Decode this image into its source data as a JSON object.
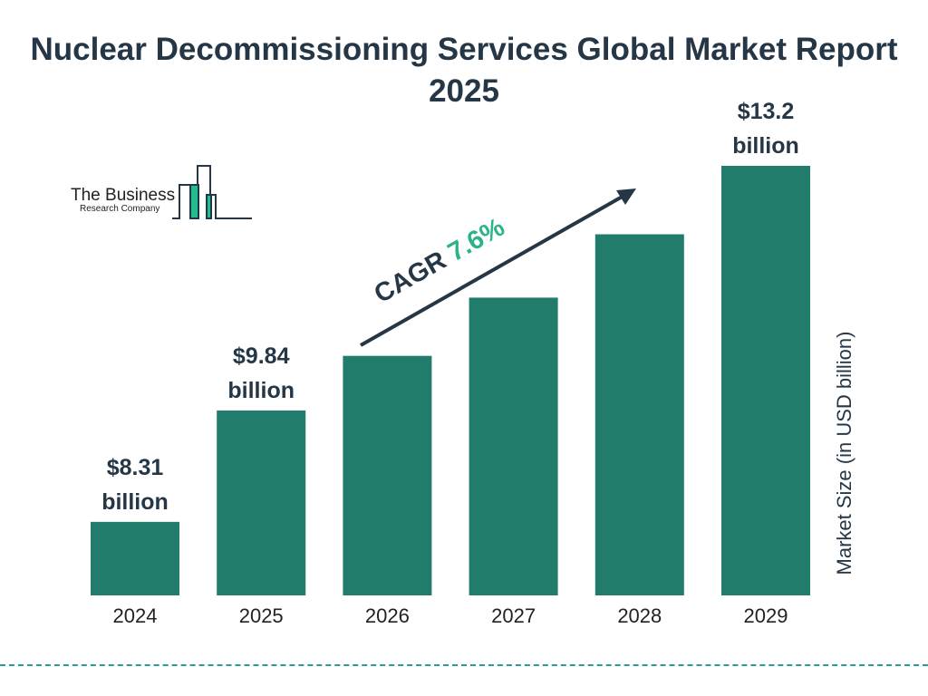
{
  "title": "Nuclear Decommissioning Services Global Market Report 2025",
  "logo": {
    "line1": "The Business",
    "line2": "Research Company"
  },
  "colors": {
    "bar": "#217c6b",
    "text": "#253746",
    "cagr": "#2cb38a",
    "logo_accent": "#1fbf8f"
  },
  "chart_data": {
    "type": "bar",
    "title": "Nuclear Decommissioning Services Global Market Report 2025",
    "xlabel": "",
    "ylabel": "Market Size (in USD billion)",
    "categories": [
      "2024",
      "2025",
      "2026",
      "2027",
      "2028",
      "2029"
    ],
    "values": [
      8.31,
      9.84,
      10.59,
      11.39,
      12.26,
      13.2
    ],
    "data_labels": [
      {
        "index": 0,
        "line1": "$8.31",
        "line2": "billion"
      },
      {
        "index": 1,
        "line1": "$9.84",
        "line2": "billion"
      },
      {
        "index": 5,
        "line1": "$13.2",
        "line2": "billion"
      }
    ],
    "annotation": {
      "label": "CAGR",
      "value": "7.6%"
    },
    "grid": false
  }
}
